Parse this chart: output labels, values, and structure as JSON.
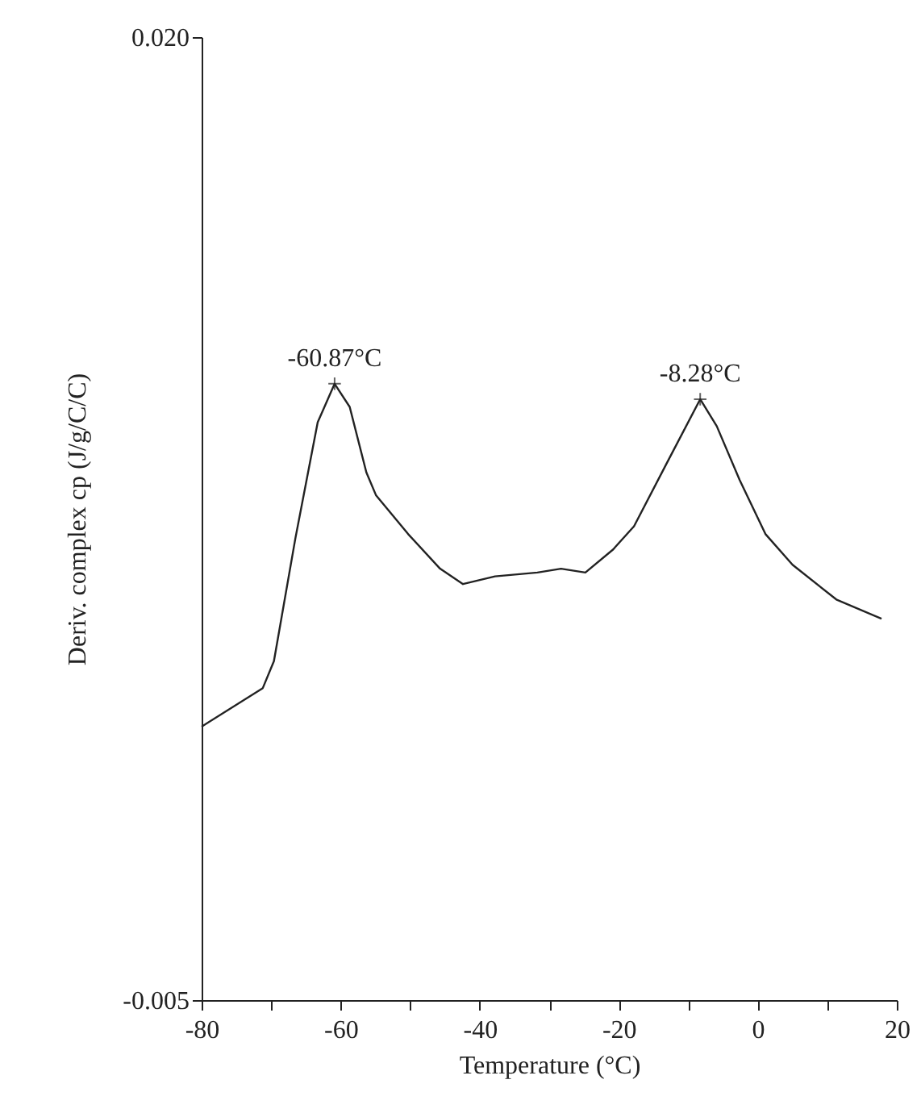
{
  "chart_data": {
    "type": "line",
    "xlabel": "Temperature (°C)",
    "ylabel": "Deriv. complex cp (J/g/C/C)",
    "x": [
      -80,
      -71.2,
      -69.6,
      -66.5,
      -63.3,
      -60.87,
      -58.7,
      -56.3,
      -54.9,
      -50.3,
      -45.7,
      -42.4,
      -37.8,
      -31.7,
      -28.3,
      -24.8,
      -20.8,
      -17.8,
      -13.2,
      -8.28,
      -5.9,
      -2.6,
      1.1,
      5.0,
      11.3,
      17.8
    ],
    "series": [
      {
        "color": "#222222",
        "values": [
          0.0021,
          0.0031,
          0.0038,
          0.007,
          0.01,
          0.011,
          0.0104,
          0.0087,
          0.0081,
          0.0071,
          0.0062,
          0.0058,
          0.006,
          0.0061,
          0.0062,
          0.0061,
          0.0067,
          0.0073,
          0.0089,
          0.0106,
          0.0099,
          0.0085,
          0.0071,
          0.0063,
          0.0054,
          0.0049
        ]
      }
    ],
    "xlim": [
      -80,
      20
    ],
    "xticks": [
      -80,
      {
        "value": -70,
        "label": null
      },
      -60,
      {
        "value": -50,
        "label": null
      },
      -40,
      {
        "value": -30,
        "label": null
      },
      -20,
      {
        "value": -10,
        "label": null
      },
      0,
      {
        "value": 10,
        "label": null
      },
      20
    ],
    "ylim": [
      -0.005,
      0.02
    ],
    "yticks": [
      {
        "value": -0.005,
        "label": "-0.005"
      },
      {
        "value": 0.02,
        "label": "0.020"
      }
    ],
    "annotations": [
      {
        "text": "-60.87°C",
        "x": -60.87,
        "y": 0.011
      },
      {
        "text": "-8.28°C",
        "x": -8.28,
        "y": 0.0106
      }
    ],
    "grid": false,
    "marker": "none",
    "line_style": "solid"
  }
}
